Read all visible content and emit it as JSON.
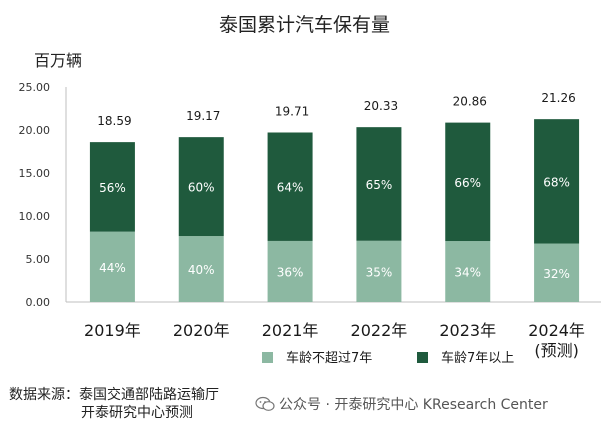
{
  "chart_data": {
    "type": "bar",
    "title": "泰国累计汽车保有量",
    "ylabel": "百万辆",
    "ylim": [
      0,
      25
    ],
    "yticks": [
      "0.00",
      "5.00",
      "10.00",
      "15.00",
      "20.00",
      "25.00"
    ],
    "categories": [
      [
        "2019年"
      ],
      [
        "2020年"
      ],
      [
        "2021年"
      ],
      [
        "2022年"
      ],
      [
        "2023年"
      ],
      [
        "2024年",
        "(预测)"
      ]
    ],
    "totals": [
      18.59,
      19.17,
      19.71,
      20.33,
      20.86,
      21.26
    ],
    "total_labels": [
      "18.59",
      "19.17",
      "19.71",
      "20.33",
      "20.86",
      "21.26"
    ],
    "series": [
      {
        "name": "车龄不超过7年",
        "color": "#8cb8a2",
        "values": [
          8.18,
          7.67,
          7.1,
          7.12,
          7.09,
          6.8
        ],
        "labels": [
          "44%",
          "40%",
          "36%",
          "35%",
          "34%",
          "32%"
        ]
      },
      {
        "name": "车龄7年以上",
        "color": "#1f5a3d",
        "values": [
          10.41,
          11.5,
          12.61,
          13.21,
          13.77,
          14.46
        ],
        "labels": [
          "56%",
          "60%",
          "64%",
          "65%",
          "66%",
          "68%"
        ]
      }
    ],
    "stacked": true,
    "grid": false,
    "legend_position": "bottom"
  },
  "footer": {
    "source_line1": "数据来源：泰国交通部陆路运输厅",
    "source_line2": "开泰研究中心预测",
    "watermark": "公众号 · 开泰研究中心 KResearch Center"
  },
  "icons": {
    "watermark": "wechat-icon"
  }
}
